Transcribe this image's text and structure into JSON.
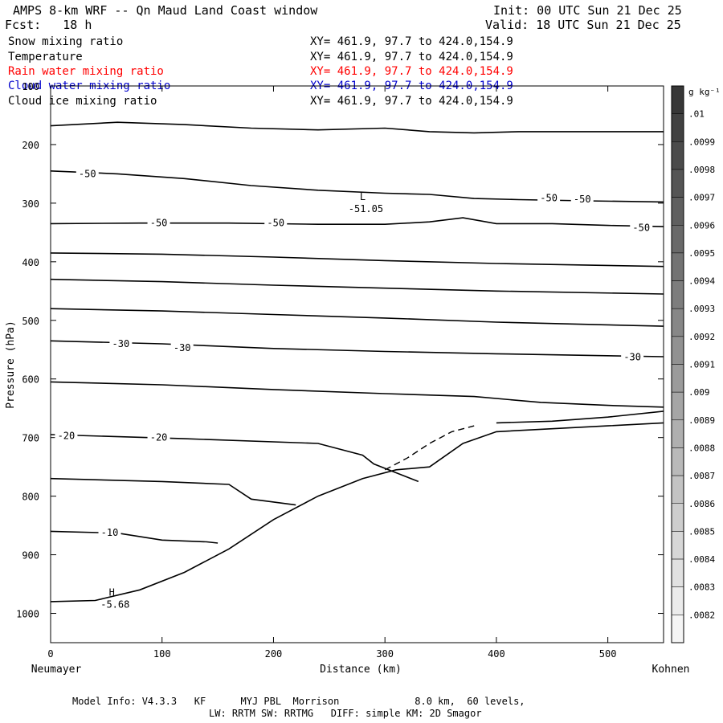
{
  "header": {
    "title": "AMPS 8-km WRF -- Qn Maud Land Coast window",
    "fcst": "Fcst:   18 h",
    "init": "Init: 00 UTC Sun 21 Dec 25",
    "valid": "Valid: 18 UTC Sun 21 Dec 25"
  },
  "fields": [
    {
      "name": "Snow mixing ratio",
      "coords": "XY= 461.9, 97.7 to 424.0,154.9",
      "color": "#000000"
    },
    {
      "name": "Temperature",
      "coords": "XY= 461.9, 97.7 to 424.0,154.9",
      "color": "#000000"
    },
    {
      "name": "Rain water mixing ratio",
      "coords": "XY= 461.9, 97.7 to 424.0,154.9",
      "color": "#ff0000"
    },
    {
      "name": "Cloud water mixing ratio",
      "coords": "XY= 461.9, 97.7 to 424.0,154.9",
      "color": "#0000cc"
    },
    {
      "name": "Cloud ice mixing ratio",
      "coords": "XY= 461.9, 97.7 to 424.0,154.9",
      "color": "#000000"
    }
  ],
  "footer": {
    "line1": "Model Info: V4.3.3   KF      MYJ PBL  Morrison             8.0 km,  60 levels,",
    "line2": "LW: RRTM SW: RRTMG   DIFF: simple KM: 2D Smagor"
  },
  "chart_data": {
    "type": "line",
    "title": "AMPS 8-km WRF -- Qn Maud Land Coast window",
    "xlabel": "Distance (km)",
    "ylabel": "Pressure (hPa)",
    "xlim": [
      0,
      550
    ],
    "ylim": [
      1050,
      100
    ],
    "x_ticks": [
      0,
      100,
      200,
      300,
      400,
      500
    ],
    "y_ticks": [
      100,
      200,
      300,
      400,
      500,
      600,
      700,
      800,
      900,
      1000
    ],
    "x_endpoints": {
      "left": "Neumayer",
      "right": "Kohnen"
    },
    "colorbar": {
      "unit": "g kg⁻¹",
      "labels": [
        ".01",
        ".0099",
        ".0098",
        ".0097",
        ".0096",
        ".0095",
        ".0094",
        ".0093",
        ".0092",
        ".0091",
        ".009",
        ".0089",
        ".0088",
        ".0087",
        ".0086",
        ".0085",
        ".0084",
        ".0083",
        ".0082"
      ]
    },
    "extrema": [
      {
        "symbol": "L",
        "value": "-51.05",
        "x": 280,
        "p": 300
      },
      {
        "symbol": "H",
        "value": "-5.68",
        "x": 55,
        "p": 975
      }
    ],
    "contour_labels": [
      {
        "text": "-50",
        "x": 33,
        "p": 250
      },
      {
        "text": "-50",
        "x": 97,
        "p": 334
      },
      {
        "text": "-50",
        "x": 202,
        "p": 334
      },
      {
        "text": "-50",
        "x": 447,
        "p": 291
      },
      {
        "text": "-50",
        "x": 477,
        "p": 293
      },
      {
        "text": "-50",
        "x": 530,
        "p": 342
      },
      {
        "text": "-30",
        "x": 63,
        "p": 540
      },
      {
        "text": "-30",
        "x": 118,
        "p": 547
      },
      {
        "text": "-30",
        "x": 522,
        "p": 563
      },
      {
        "text": "-20",
        "x": 14,
        "p": 697
      },
      {
        "text": "-20",
        "x": 97,
        "p": 700
      },
      {
        "text": "-10",
        "x": 53,
        "p": 862
      }
    ],
    "isotherms": [
      {
        "x": [
          0,
          60,
          120,
          180,
          240,
          300,
          340,
          380,
          420,
          480,
          550
        ],
        "p": [
          168,
          162,
          166,
          172,
          175,
          172,
          178,
          180,
          178,
          178,
          178
        ]
      },
      {
        "x": [
          0,
          60,
          120,
          180,
          240,
          300,
          340,
          380,
          420,
          480,
          550
        ],
        "p": [
          245,
          250,
          258,
          270,
          278,
          283,
          285,
          292,
          294,
          296,
          298
        ]
      },
      {
        "x": [
          0,
          80,
          160,
          240,
          300,
          340,
          370,
          400,
          450,
          500,
          550
        ],
        "p": [
          335,
          334,
          334,
          336,
          336,
          332,
          325,
          335,
          335,
          338,
          340
        ]
      },
      {
        "x": [
          0,
          100,
          200,
          300,
          400,
          550
        ],
        "p": [
          385,
          387,
          392,
          398,
          403,
          408
        ]
      },
      {
        "x": [
          0,
          100,
          200,
          300,
          400,
          550
        ],
        "p": [
          430,
          434,
          440,
          445,
          450,
          455
        ]
      },
      {
        "x": [
          0,
          100,
          200,
          300,
          400,
          550
        ],
        "p": [
          480,
          484,
          490,
          496,
          503,
          510
        ]
      },
      {
        "x": [
          0,
          100,
          200,
          300,
          400,
          550
        ],
        "p": [
          535,
          540,
          548,
          553,
          557,
          562
        ]
      },
      {
        "x": [
          0,
          100,
          200,
          300,
          380,
          440,
          500,
          550
        ],
        "p": [
          605,
          610,
          618,
          625,
          630,
          640,
          645,
          648
        ]
      },
      {
        "x": [
          0,
          120,
          240,
          280,
          290,
          310,
          330
        ],
        "p": [
          695,
          702,
          710,
          730,
          745,
          760,
          775
        ]
      },
      {
        "x": [
          0,
          100,
          160,
          180,
          200,
          220
        ],
        "p": [
          770,
          775,
          780,
          805,
          810,
          815
        ]
      },
      {
        "x": [
          0,
          60,
          100,
          140,
          150
        ],
        "p": [
          860,
          863,
          875,
          878,
          880
        ]
      },
      {
        "x": [
          0,
          40,
          80,
          120,
          160,
          200,
          240,
          280,
          310,
          340,
          370,
          400,
          450,
          500,
          550
        ],
        "p": [
          980,
          978,
          960,
          930,
          890,
          840,
          800,
          770,
          755,
          750,
          710,
          690,
          685,
          680,
          675
        ]
      },
      {
        "x": [
          400,
          450,
          500,
          550
        ],
        "p": [
          675,
          672,
          665,
          655
        ]
      }
    ],
    "dashed_contour": {
      "x": [
        300,
        320,
        340,
        360,
        380
      ],
      "p": [
        755,
        735,
        710,
        690,
        680
      ]
    }
  }
}
